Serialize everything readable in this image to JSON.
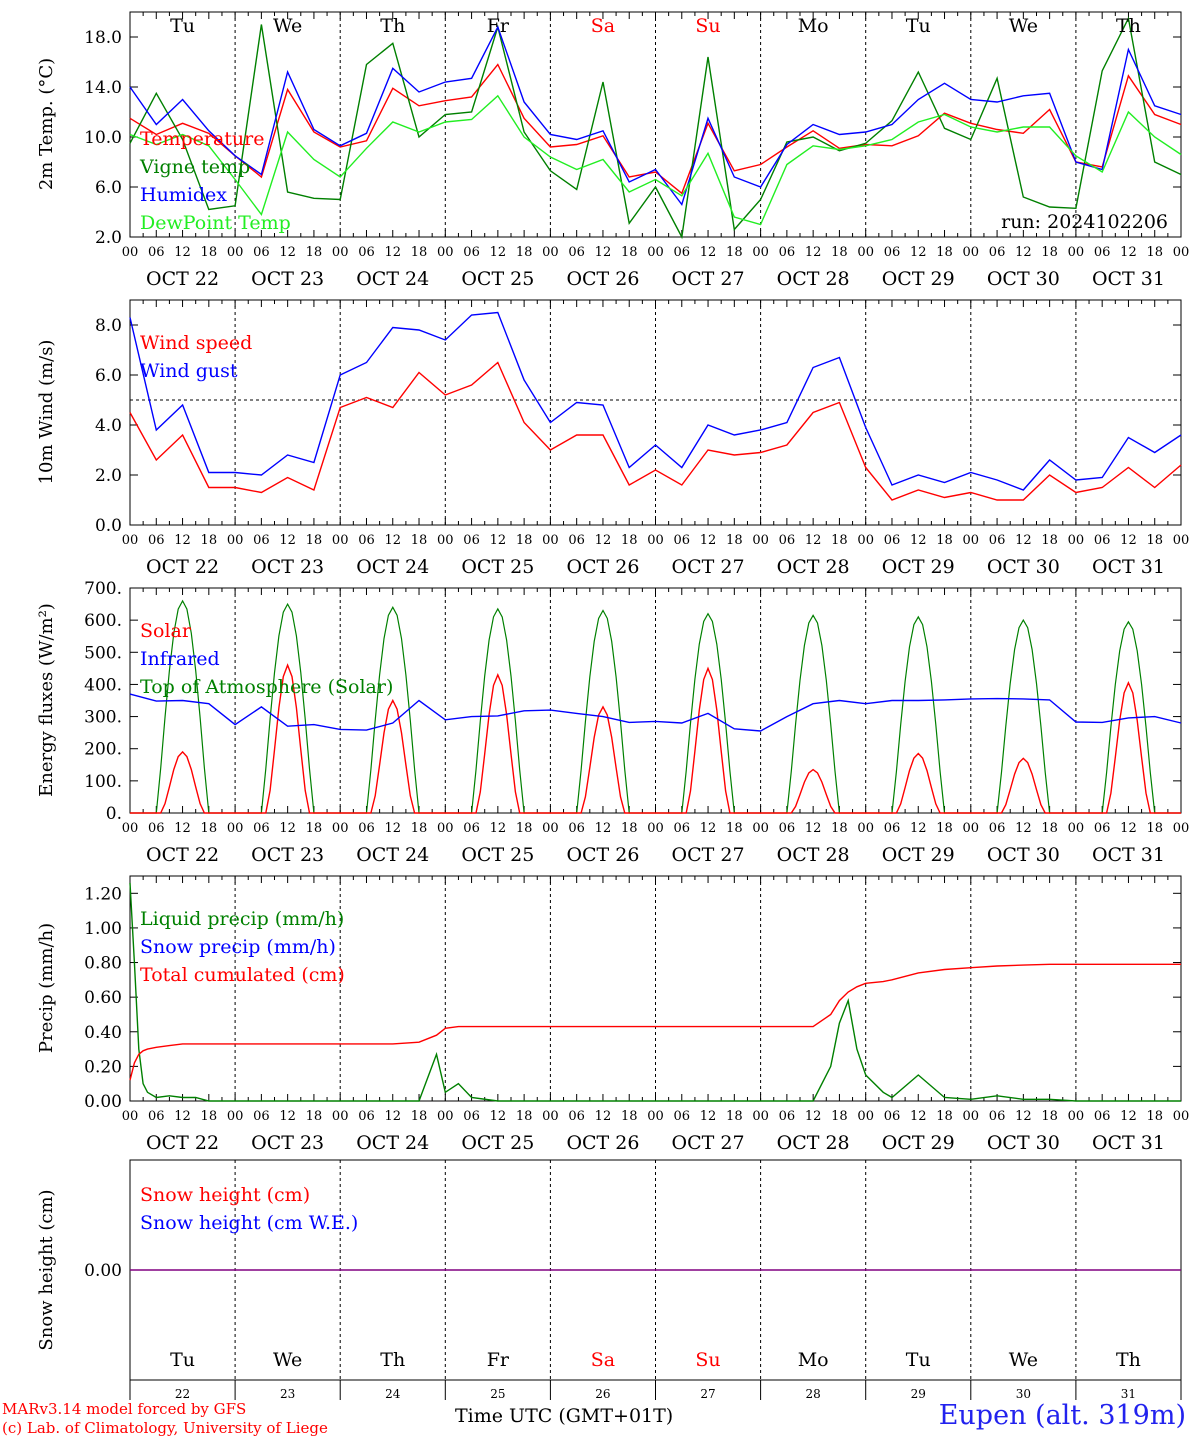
{
  "footer": {
    "credit1": "MARv3.14 model forced by GFS",
    "credit2": "(c) Lab. of Climatology, University of Liege",
    "xlabel": "Time UTC (GMT+01T)",
    "station": "Eupen (alt. 319m)"
  },
  "colors": {
    "red": "#ff0000",
    "green": "#008000",
    "blue": "#0000ff",
    "lightgreen": "#22ee22",
    "purple": "#800080"
  },
  "axis": {
    "hour_labels": [
      "00",
      "06",
      "12",
      "18"
    ],
    "dates": [
      "OCT 22",
      "OCT 23",
      "OCT 24",
      "OCT 25",
      "OCT 26",
      "OCT 27",
      "OCT 28",
      "OCT 29",
      "OCT 30",
      "OCT 31"
    ],
    "weekdays": [
      "Tu",
      "We",
      "Th",
      "Fr",
      "Sa",
      "Su",
      "Mo",
      "Tu",
      "We",
      "Th"
    ],
    "weekend_indices": [
      4,
      5
    ],
    "day_numbers": [
      "22",
      "23",
      "24",
      "25",
      "26",
      "27",
      "28",
      "29",
      "30",
      "31"
    ],
    "last_hour_label": "00"
  },
  "chart_data": [
    {
      "type": "line",
      "ylabel": "2m Temp. (°C)",
      "ylim": [
        2,
        20
      ],
      "yticks": [
        "2.0",
        "6.0",
        "10.0",
        "14.0",
        "18.0"
      ],
      "annotation": "run: 2024102206",
      "x_hours": [
        0,
        6,
        12,
        18,
        24,
        30,
        36,
        42,
        48,
        54,
        60,
        66,
        72,
        78,
        84,
        90,
        96,
        102,
        108,
        114,
        120,
        126,
        132,
        138,
        144,
        150,
        156,
        162,
        168,
        174,
        180,
        186,
        192,
        198,
        204,
        210,
        216,
        222,
        228,
        234,
        240
      ],
      "series": [
        {
          "name": "Temperature",
          "color": "#ff0000",
          "values": [
            11.5,
            10.2,
            11.1,
            10.3,
            8.5,
            6.8,
            13.8,
            10.4,
            9.2,
            9.7,
            13.9,
            12.5,
            12.9,
            13.2,
            15.8,
            11.5,
            9.2,
            9.4,
            10.1,
            6.8,
            7.2,
            5.5,
            11.1,
            7.3,
            7.8,
            9.2,
            10.5,
            9.1,
            9.4,
            9.3,
            10.1,
            11.9,
            11.1,
            10.6,
            10.3,
            12.2,
            8.0,
            7.6,
            14.9,
            11.8,
            11.0
          ]
        },
        {
          "name": "Vigne temp",
          "color": "#008000",
          "values": [
            9.5,
            13.5,
            9.8,
            4.2,
            4.5,
            19.0,
            5.6,
            5.1,
            5.0,
            15.8,
            17.5,
            10.0,
            11.8,
            12.0,
            18.8,
            10.4,
            7.3,
            5.8,
            14.4,
            3.1,
            6.0,
            2.0,
            16.4,
            2.6,
            5.0,
            9.6,
            10.0,
            8.9,
            9.5,
            11.3,
            15.2,
            10.7,
            9.8,
            14.7,
            5.2,
            4.4,
            4.3,
            15.3,
            19.5,
            8.0,
            7.0
          ]
        },
        {
          "name": "Humidex",
          "color": "#0000ff",
          "values": [
            14.0,
            11.0,
            13.0,
            10.5,
            8.5,
            7.0,
            15.2,
            10.6,
            9.3,
            10.3,
            15.5,
            13.6,
            14.4,
            14.7,
            18.8,
            12.8,
            10.2,
            9.8,
            10.5,
            6.4,
            7.4,
            4.6,
            11.5,
            6.8,
            6.0,
            9.4,
            11.0,
            10.2,
            10.4,
            11.0,
            13.0,
            14.3,
            13.0,
            12.8,
            13.3,
            13.5,
            8.0,
            7.4,
            17.0,
            12.5,
            11.8
          ]
        },
        {
          "name": "DewPoint Temp",
          "color": "#22ee22",
          "values": [
            10.2,
            9.4,
            10.2,
            9.3,
            6.6,
            3.8,
            10.4,
            8.2,
            6.8,
            9.1,
            11.2,
            10.4,
            11.2,
            11.4,
            13.3,
            10.0,
            8.4,
            7.4,
            8.2,
            5.6,
            6.6,
            5.3,
            8.7,
            3.6,
            3.0,
            7.8,
            9.3,
            9.0,
            9.3,
            9.8,
            11.2,
            11.8,
            10.8,
            10.4,
            10.8,
            10.8,
            8.5,
            7.2,
            12.0,
            10.0,
            8.6
          ]
        }
      ]
    },
    {
      "type": "line",
      "ylabel": "10m Wind (m/s)",
      "ylim": [
        0,
        9
      ],
      "yticks": [
        "0.0",
        "2.0",
        "4.0",
        "6.0",
        "8.0"
      ],
      "ref_line": 5.0,
      "x_hours": [
        0,
        6,
        12,
        18,
        24,
        30,
        36,
        42,
        48,
        54,
        60,
        66,
        72,
        78,
        84,
        90,
        96,
        102,
        108,
        114,
        120,
        126,
        132,
        138,
        144,
        150,
        156,
        162,
        168,
        174,
        180,
        186,
        192,
        198,
        204,
        210,
        216,
        222,
        228,
        234,
        240
      ],
      "series": [
        {
          "name": "Wind speed",
          "color": "#ff0000",
          "values": [
            4.5,
            2.6,
            3.6,
            1.5,
            1.5,
            1.3,
            1.9,
            1.4,
            4.7,
            5.1,
            4.7,
            6.1,
            5.2,
            5.6,
            6.5,
            4.1,
            3.0,
            3.6,
            3.6,
            1.6,
            2.2,
            1.6,
            3.0,
            2.8,
            2.9,
            3.2,
            4.5,
            4.9,
            2.3,
            1.0,
            1.4,
            1.1,
            1.3,
            1.0,
            1.0,
            2.0,
            1.3,
            1.5,
            2.3,
            1.5,
            2.4
          ]
        },
        {
          "name": "Wind gust",
          "color": "#0000ff",
          "values": [
            8.3,
            3.8,
            4.8,
            2.1,
            2.1,
            2.0,
            2.8,
            2.5,
            6.0,
            6.5,
            7.9,
            7.8,
            7.4,
            8.4,
            8.5,
            5.8,
            4.1,
            4.9,
            4.8,
            2.3,
            3.2,
            2.3,
            4.0,
            3.6,
            3.8,
            4.1,
            6.3,
            6.7,
            3.9,
            1.6,
            2.0,
            1.7,
            2.1,
            1.8,
            1.4,
            2.6,
            1.8,
            1.9,
            3.5,
            2.9,
            3.6
          ]
        }
      ]
    },
    {
      "type": "line",
      "ylabel": "Energy fluxes (W/m²)",
      "ylim": [
        0,
        700
      ],
      "yticks": [
        "0.",
        "100.",
        "200.",
        "300.",
        "400.",
        "500.",
        "600.",
        "700."
      ],
      "series": [
        {
          "name": "Solar",
          "color": "#ff0000",
          "peaks": [
            190,
            460,
            350,
            430,
            330,
            450,
            135,
            185,
            170,
            405
          ]
        },
        {
          "name": "Infrared",
          "color": "#0000ff",
          "x_hours": [
            0,
            6,
            12,
            18,
            24,
            30,
            36,
            42,
            48,
            54,
            60,
            66,
            72,
            78,
            84,
            90,
            96,
            102,
            108,
            114,
            120,
            126,
            132,
            138,
            144,
            150,
            156,
            162,
            168,
            174,
            180,
            186,
            192,
            198,
            204,
            210,
            216,
            222,
            228,
            234,
            240
          ],
          "values": [
            370,
            348,
            350,
            340,
            275,
            330,
            270,
            275,
            260,
            258,
            280,
            350,
            290,
            300,
            302,
            318,
            320,
            310,
            300,
            282,
            285,
            280,
            310,
            262,
            255,
            300,
            340,
            350,
            340,
            350,
            350,
            352,
            355,
            356,
            355,
            352,
            283,
            282,
            296,
            300,
            280
          ]
        },
        {
          "name": "Top of Atmosphere (Solar)",
          "color": "#008000",
          "peaks": [
            660,
            650,
            640,
            635,
            630,
            620,
            615,
            610,
            600,
            595
          ]
        }
      ]
    },
    {
      "type": "line",
      "ylabel": "Precip (mm/h)",
      "ylim": [
        0,
        1.3
      ],
      "yticks": [
        "0.00",
        "0.20",
        "0.40",
        "0.60",
        "0.80",
        "1.00",
        "1.20"
      ],
      "x_hours": [
        0,
        1,
        2,
        3,
        4,
        6,
        9,
        12,
        15,
        18,
        21,
        24,
        30,
        36,
        42,
        48,
        54,
        60,
        66,
        70,
        72,
        75,
        78,
        84,
        96,
        108,
        120,
        132,
        144,
        156,
        160,
        162,
        164,
        166,
        168,
        172,
        174,
        180,
        186,
        192,
        198,
        204,
        210,
        216,
        222,
        228,
        234,
        240
      ],
      "series": [
        {
          "name": "Liquid precip (mm/h)",
          "color": "#008000",
          "values": [
            1.26,
            0.8,
            0.3,
            0.1,
            0.05,
            0.02,
            0.03,
            0.02,
            0.02,
            0.0,
            0.0,
            0.0,
            0.0,
            0.0,
            0.0,
            0.0,
            0.0,
            0.0,
            0.0,
            0.27,
            0.05,
            0.1,
            0.02,
            0.0,
            0.0,
            0.0,
            0.0,
            0.0,
            0.0,
            0.0,
            0.2,
            0.45,
            0.58,
            0.3,
            0.15,
            0.05,
            0.02,
            0.15,
            0.02,
            0.01,
            0.03,
            0.01,
            0.01,
            0.0,
            0.0,
            0.0,
            0.0,
            0.0
          ]
        },
        {
          "name": "Snow precip (mm/h)",
          "color": "#0000ff",
          "values": []
        },
        {
          "name": "Total cumulated (cm)",
          "color": "#ff0000",
          "values": [
            0.12,
            0.22,
            0.27,
            0.29,
            0.3,
            0.31,
            0.32,
            0.33,
            0.33,
            0.33,
            0.33,
            0.33,
            0.33,
            0.33,
            0.33,
            0.33,
            0.33,
            0.33,
            0.34,
            0.38,
            0.42,
            0.43,
            0.43,
            0.43,
            0.43,
            0.43,
            0.43,
            0.43,
            0.43,
            0.43,
            0.5,
            0.58,
            0.63,
            0.66,
            0.68,
            0.69,
            0.7,
            0.74,
            0.76,
            0.77,
            0.78,
            0.785,
            0.79,
            0.79,
            0.79,
            0.79,
            0.79,
            0.79
          ]
        }
      ]
    },
    {
      "type": "line",
      "ylabel": "Snow height (cm)",
      "yticks": [
        "0.00"
      ],
      "series": [
        {
          "name": "Snow height (cm)",
          "color": "#ff0000",
          "values": [
            0,
            0
          ]
        },
        {
          "name": "Snow height (cm W.E.)",
          "color": "#0000ff",
          "values": [
            0,
            0
          ]
        }
      ]
    }
  ]
}
